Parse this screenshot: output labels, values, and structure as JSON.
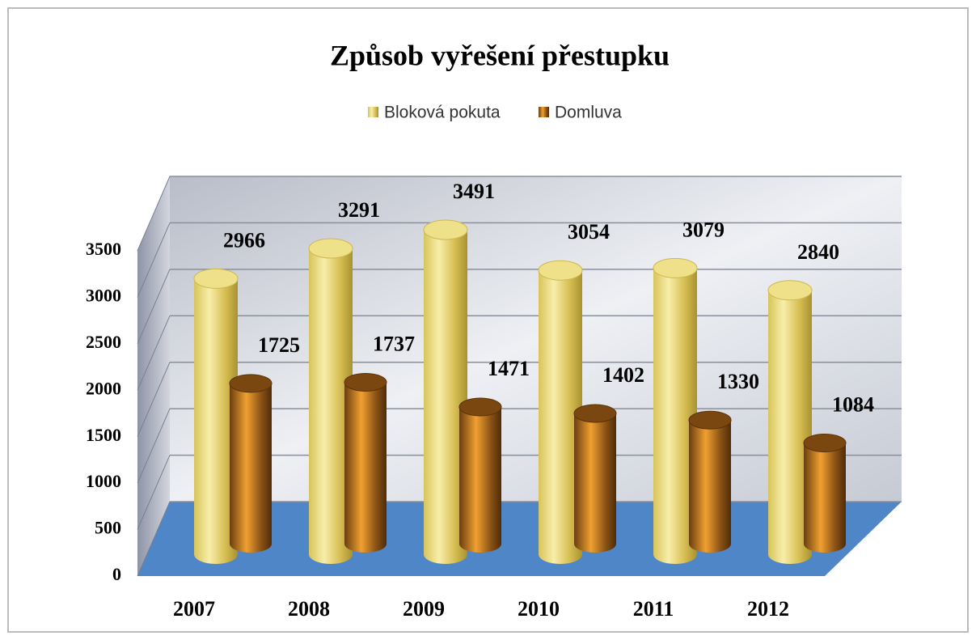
{
  "chart_data": {
    "type": "bar",
    "title": "Způsob vyřešení přestupku",
    "categories": [
      "2007",
      "2008",
      "2009",
      "2010",
      "2011",
      "2012"
    ],
    "series": [
      {
        "name": "Bloková pokuta",
        "color": "#e8d36a",
        "values": [
          2966,
          3291,
          3491,
          3054,
          3079,
          2840
        ]
      },
      {
        "name": "Domluva",
        "color": "#c9771a",
        "values": [
          1725,
          1737,
          1471,
          1402,
          1330,
          1084
        ]
      }
    ],
    "ylim": [
      0,
      3500
    ],
    "yticks": [
      0,
      500,
      1000,
      1500,
      2000,
      2500,
      3000,
      3500
    ],
    "grid": true,
    "legend": "top"
  }
}
